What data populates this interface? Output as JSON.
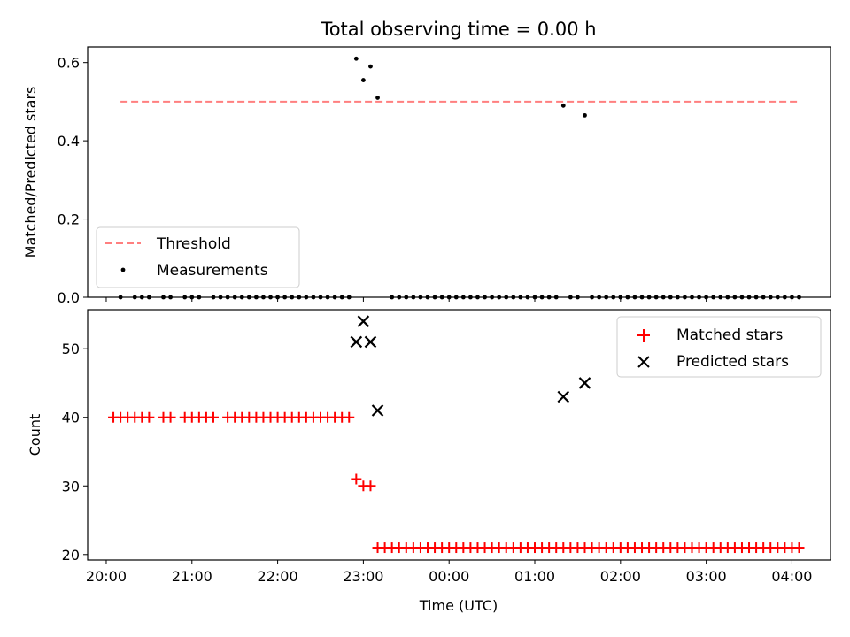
{
  "chart_data": [
    {
      "type": "scatter",
      "title": "Total observing time = 0.00 h",
      "xlabel": "",
      "ylabel": "Matched/Predicted stars",
      "xlim": [
        "19:47",
        "04:27"
      ],
      "ylim": [
        0,
        0.64
      ],
      "yticks": [
        "0.0",
        "0.2",
        "0.4",
        "0.6"
      ],
      "grid": false,
      "legend_position": "lower-left",
      "threshold": {
        "name": "Threshold",
        "value": 0.5,
        "x_start": "20:10",
        "x_end": "04:05",
        "color": "#ff7f7f"
      },
      "series": [
        {
          "name": "Measurements",
          "color": "#000000",
          "points": [
            [
              "20:10",
              0
            ],
            [
              "20:20",
              0
            ],
            [
              "20:25",
              0
            ],
            [
              "20:30",
              0
            ],
            [
              "20:40",
              0
            ],
            [
              "20:45",
              0
            ],
            [
              "20:55",
              0
            ],
            [
              "21:00",
              0
            ],
            [
              "21:05",
              0
            ],
            [
              "21:15",
              0
            ],
            [
              "21:20",
              0
            ],
            [
              "21:25",
              0
            ],
            [
              "21:30",
              0
            ],
            [
              "21:35",
              0
            ],
            [
              "21:40",
              0
            ],
            [
              "21:45",
              0
            ],
            [
              "21:50",
              0
            ],
            [
              "21:55",
              0
            ],
            [
              "22:00",
              0
            ],
            [
              "22:05",
              0
            ],
            [
              "22:10",
              0
            ],
            [
              "22:15",
              0
            ],
            [
              "22:20",
              0
            ],
            [
              "22:25",
              0
            ],
            [
              "22:30",
              0
            ],
            [
              "22:35",
              0
            ],
            [
              "22:40",
              0
            ],
            [
              "22:45",
              0
            ],
            [
              "22:50",
              0
            ],
            [
              "22:55",
              0.61
            ],
            [
              "23:00",
              0.555
            ],
            [
              "23:05",
              0.59
            ],
            [
              "23:10",
              0.51
            ],
            [
              "23:20",
              0
            ],
            [
              "23:25",
              0
            ],
            [
              "23:30",
              0
            ],
            [
              "23:35",
              0
            ],
            [
              "23:40",
              0
            ],
            [
              "23:45",
              0
            ],
            [
              "23:50",
              0
            ],
            [
              "23:55",
              0
            ],
            [
              "00:00",
              0
            ],
            [
              "00:05",
              0
            ],
            [
              "00:10",
              0
            ],
            [
              "00:15",
              0
            ],
            [
              "00:20",
              0
            ],
            [
              "00:25",
              0
            ],
            [
              "00:30",
              0
            ],
            [
              "00:35",
              0
            ],
            [
              "00:40",
              0
            ],
            [
              "00:45",
              0
            ],
            [
              "00:50",
              0
            ],
            [
              "00:55",
              0
            ],
            [
              "01:00",
              0
            ],
            [
              "01:05",
              0
            ],
            [
              "01:10",
              0
            ],
            [
              "01:15",
              0
            ],
            [
              "01:20",
              0.49
            ],
            [
              "01:25",
              0
            ],
            [
              "01:30",
              0
            ],
            [
              "01:35",
              0.465
            ],
            [
              "01:40",
              0
            ],
            [
              "01:45",
              0
            ],
            [
              "01:50",
              0
            ],
            [
              "01:55",
              0
            ],
            [
              "02:00",
              0
            ],
            [
              "02:05",
              0
            ],
            [
              "02:10",
              0
            ],
            [
              "02:15",
              0
            ],
            [
              "02:20",
              0
            ],
            [
              "02:25",
              0
            ],
            [
              "02:30",
              0
            ],
            [
              "02:35",
              0
            ],
            [
              "02:40",
              0
            ],
            [
              "02:45",
              0
            ],
            [
              "02:50",
              0
            ],
            [
              "02:55",
              0
            ],
            [
              "03:00",
              0
            ],
            [
              "03:05",
              0
            ],
            [
              "03:10",
              0
            ],
            [
              "03:15",
              0
            ],
            [
              "03:20",
              0
            ],
            [
              "03:25",
              0
            ],
            [
              "03:30",
              0
            ],
            [
              "03:35",
              0
            ],
            [
              "03:40",
              0
            ],
            [
              "03:45",
              0
            ],
            [
              "03:50",
              0
            ],
            [
              "03:55",
              0
            ],
            [
              "04:00",
              0
            ],
            [
              "04:05",
              0
            ]
          ]
        }
      ]
    },
    {
      "type": "scatter",
      "title": "",
      "xlabel": "Time (UTC)",
      "ylabel": "Count",
      "xlim": [
        "19:47",
        "04:27"
      ],
      "xticks": [
        "20:00",
        "21:00",
        "22:00",
        "23:00",
        "00:00",
        "01:00",
        "02:00",
        "03:00",
        "04:00"
      ],
      "ylim": [
        19.2,
        55.7
      ],
      "yticks": [
        "20",
        "30",
        "40",
        "50"
      ],
      "grid": false,
      "legend_position": "top-right",
      "series": [
        {
          "name": "Matched stars",
          "marker": "plus",
          "color": "#ff0000",
          "points": [
            [
              "20:05",
              40
            ],
            [
              "20:10",
              40
            ],
            [
              "20:15",
              40
            ],
            [
              "20:20",
              40
            ],
            [
              "20:25",
              40
            ],
            [
              "20:30",
              40
            ],
            [
              "20:40",
              40
            ],
            [
              "20:45",
              40
            ],
            [
              "20:55",
              40
            ],
            [
              "21:00",
              40
            ],
            [
              "21:05",
              40
            ],
            [
              "21:10",
              40
            ],
            [
              "21:15",
              40
            ],
            [
              "21:25",
              40
            ],
            [
              "21:30",
              40
            ],
            [
              "21:35",
              40
            ],
            [
              "21:40",
              40
            ],
            [
              "21:45",
              40
            ],
            [
              "21:50",
              40
            ],
            [
              "21:55",
              40
            ],
            [
              "22:00",
              40
            ],
            [
              "22:05",
              40
            ],
            [
              "22:10",
              40
            ],
            [
              "22:15",
              40
            ],
            [
              "22:20",
              40
            ],
            [
              "22:25",
              40
            ],
            [
              "22:30",
              40
            ],
            [
              "22:35",
              40
            ],
            [
              "22:40",
              40
            ],
            [
              "22:45",
              40
            ],
            [
              "22:50",
              40
            ],
            [
              "22:55",
              31
            ],
            [
              "23:00",
              30
            ],
            [
              "23:05",
              30
            ],
            [
              "23:10",
              21
            ],
            [
              "23:15",
              21
            ],
            [
              "23:20",
              21
            ],
            [
              "23:25",
              21
            ],
            [
              "23:30",
              21
            ],
            [
              "23:35",
              21
            ],
            [
              "23:40",
              21
            ],
            [
              "23:45",
              21
            ],
            [
              "23:50",
              21
            ],
            [
              "23:55",
              21
            ],
            [
              "00:00",
              21
            ],
            [
              "00:05",
              21
            ],
            [
              "00:10",
              21
            ],
            [
              "00:15",
              21
            ],
            [
              "00:20",
              21
            ],
            [
              "00:25",
              21
            ],
            [
              "00:30",
              21
            ],
            [
              "00:35",
              21
            ],
            [
              "00:40",
              21
            ],
            [
              "00:45",
              21
            ],
            [
              "00:50",
              21
            ],
            [
              "00:55",
              21
            ],
            [
              "01:00",
              21
            ],
            [
              "01:05",
              21
            ],
            [
              "01:10",
              21
            ],
            [
              "01:15",
              21
            ],
            [
              "01:20",
              21
            ],
            [
              "01:25",
              21
            ],
            [
              "01:30",
              21
            ],
            [
              "01:35",
              21
            ],
            [
              "01:40",
              21
            ],
            [
              "01:45",
              21
            ],
            [
              "01:50",
              21
            ],
            [
              "01:55",
              21
            ],
            [
              "02:00",
              21
            ],
            [
              "02:05",
              21
            ],
            [
              "02:10",
              21
            ],
            [
              "02:15",
              21
            ],
            [
              "02:20",
              21
            ],
            [
              "02:25",
              21
            ],
            [
              "02:30",
              21
            ],
            [
              "02:35",
              21
            ],
            [
              "02:40",
              21
            ],
            [
              "02:45",
              21
            ],
            [
              "02:50",
              21
            ],
            [
              "02:55",
              21
            ],
            [
              "03:00",
              21
            ],
            [
              "03:05",
              21
            ],
            [
              "03:10",
              21
            ],
            [
              "03:15",
              21
            ],
            [
              "03:20",
              21
            ],
            [
              "03:25",
              21
            ],
            [
              "03:30",
              21
            ],
            [
              "03:35",
              21
            ],
            [
              "03:40",
              21
            ],
            [
              "03:45",
              21
            ],
            [
              "03:50",
              21
            ],
            [
              "03:55",
              21
            ],
            [
              "04:00",
              21
            ],
            [
              "04:05",
              21
            ]
          ]
        },
        {
          "name": "Predicted stars",
          "marker": "x",
          "color": "#000000",
          "points": [
            [
              "22:55",
              51
            ],
            [
              "23:00",
              54
            ],
            [
              "23:05",
              51
            ],
            [
              "23:10",
              41
            ],
            [
              "01:20",
              43
            ],
            [
              "01:35",
              45
            ]
          ]
        }
      ]
    }
  ]
}
